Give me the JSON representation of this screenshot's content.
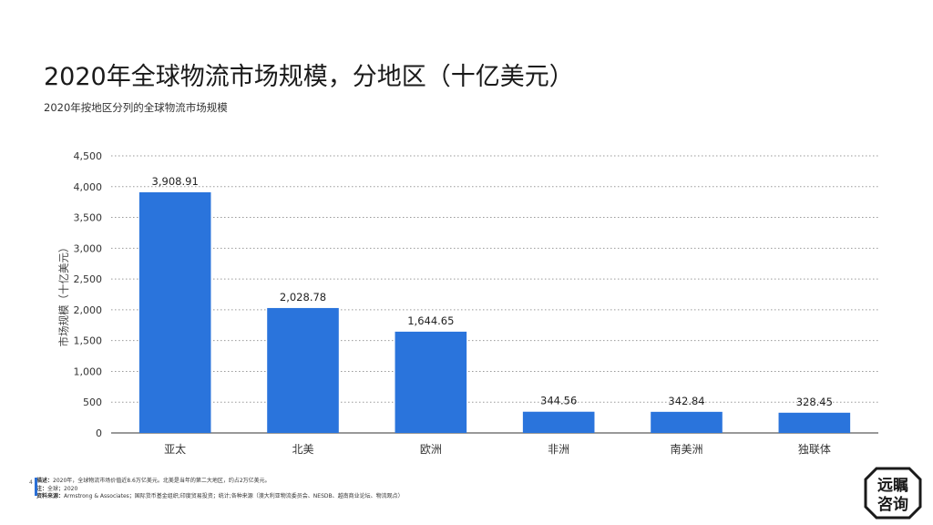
{
  "header": {
    "title": "2020年全球物流市场规模，分地区（十亿美元）",
    "subtitle": "2020年按地区分列的全球物流市场规模"
  },
  "chart_data": {
    "type": "bar",
    "categories": [
      "亚太",
      "北美",
      "欧洲",
      "非洲",
      "南美洲",
      "独联体"
    ],
    "values": [
      3908.91,
      2028.78,
      1644.65,
      344.56,
      342.84,
      328.45
    ],
    "value_labels": [
      "3,908.91",
      "2,028.78",
      "1,644.65",
      "344.56",
      "342.84",
      "328.45"
    ],
    "ylabel": "市场规模（十亿美元）",
    "ylim": [
      0,
      4500
    ],
    "yticks": [
      0,
      500,
      1000,
      1500,
      2000,
      2500,
      3000,
      3500,
      4000,
      4500
    ],
    "ytick_labels": [
      "0",
      "500",
      "1,000",
      "1,500",
      "2,000",
      "2,500",
      "3,000",
      "3,500",
      "4,000",
      "4,500"
    ],
    "grid": true,
    "bar_color": "#2a74dc"
  },
  "footer": {
    "page_number": "4",
    "desc_label": "描述：",
    "desc_text": "2020年，全球物流市场价值近8.6万亿美元。北美是当年的第二大地区，约占2万亿美元。",
    "note_label": "注：",
    "note_text": "全球；2020",
    "source_label": "资料来源：",
    "source_text": "Armstrong & Associates；国际货币基金组织;印度贸易投资；统计;各种来源（澳大利亚物流委员会、NESDB、越南商业论坛、物流观点）"
  },
  "logo": {
    "line1": "远瞩",
    "line2": "咨询"
  }
}
